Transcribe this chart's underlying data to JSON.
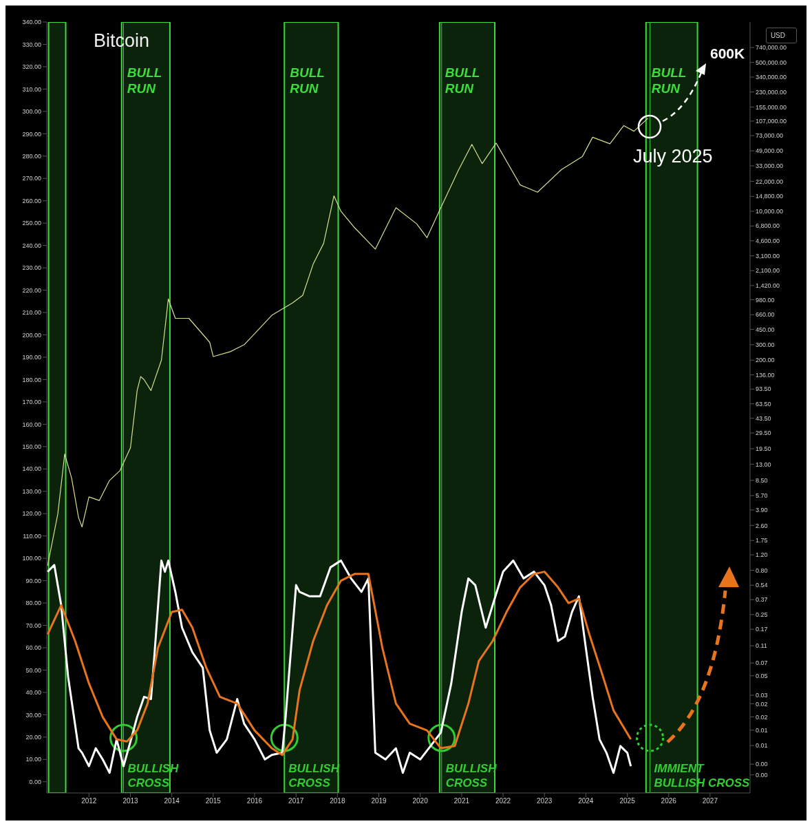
{
  "chart_data": {
    "type": "line",
    "title": "Bitcoin",
    "y2label": "USD",
    "annotations": [
      "July 2025",
      "600K"
    ],
    "xlim": [
      "2010-12-25",
      "2027-12-20"
    ],
    "xticks": [
      {
        "value": "2012-01-01",
        "label": "2012"
      },
      {
        "value": "2013-01-01",
        "label": "2013"
      },
      {
        "value": "2014-01-01",
        "label": "2014"
      },
      {
        "value": "2015-01-01",
        "label": "2015"
      },
      {
        "value": "2016-01-01",
        "label": "2016"
      },
      {
        "value": "2017-01-01",
        "label": "2017"
      },
      {
        "value": "2018-01-01",
        "label": "2018"
      },
      {
        "value": "2019-01-01",
        "label": "2019"
      },
      {
        "value": "2020-01-01",
        "label": "2020"
      },
      {
        "value": "2021-01-01",
        "label": "2021"
      },
      {
        "value": "2022-01-01",
        "label": "2022"
      },
      {
        "value": "2023-01-01",
        "label": "2023"
      },
      {
        "value": "2024-01-01",
        "label": "2024"
      },
      {
        "value": "2025-01-01",
        "label": "2025"
      },
      {
        "value": "2026-01-01",
        "label": "2026"
      },
      {
        "value": "2027-01-01",
        "label": "2027"
      }
    ],
    "ylim": [
      -5,
      340
    ],
    "yticks": [
      {
        "value": 0,
        "label": "0.00"
      },
      {
        "value": 10,
        "label": "10.00"
      },
      {
        "value": 20,
        "label": "20.00"
      },
      {
        "value": 30,
        "label": "30.00"
      },
      {
        "value": 40,
        "label": "40.00"
      },
      {
        "value": 50,
        "label": "50.00"
      },
      {
        "value": 60,
        "label": "60.00"
      },
      {
        "value": 70,
        "label": "70.00"
      },
      {
        "value": 80,
        "label": "80.00"
      },
      {
        "value": 90,
        "label": "90.00"
      },
      {
        "value": 100,
        "label": "100.00"
      },
      {
        "value": 110,
        "label": "110.00"
      },
      {
        "value": 120,
        "label": "120.00"
      },
      {
        "value": 130,
        "label": "130.00"
      },
      {
        "value": 140,
        "label": "140.00"
      },
      {
        "value": 150,
        "label": "150.00"
      },
      {
        "value": 160,
        "label": "160.00"
      },
      {
        "value": 170,
        "label": "170.00"
      },
      {
        "value": 180,
        "label": "180.00"
      },
      {
        "value": 190,
        "label": "190.00"
      },
      {
        "value": 200,
        "label": "200.00"
      },
      {
        "value": 210,
        "label": "210.00"
      },
      {
        "value": 220,
        "label": "220.00"
      },
      {
        "value": 230,
        "label": "230.00"
      },
      {
        "value": 240,
        "label": "240.00"
      },
      {
        "value": 250,
        "label": "250.00"
      },
      {
        "value": 260,
        "label": "260.00"
      },
      {
        "value": 270,
        "label": "270.00"
      },
      {
        "value": 280,
        "label": "280.00"
      },
      {
        "value": 290,
        "label": "290.00"
      },
      {
        "value": 300,
        "label": "300.00"
      },
      {
        "value": 310,
        "label": "310.00"
      },
      {
        "value": 320,
        "label": "320.00"
      },
      {
        "value": 330,
        "label": "330.00"
      },
      {
        "value": 340,
        "label": "340.00"
      }
    ],
    "y2lim": [
      0.0023,
      1445000
    ],
    "y2ticks": [
      {
        "value": 740000,
        "label": "740,000.00"
      },
      {
        "value": 500000,
        "label": "500,000.00"
      },
      {
        "value": 340000,
        "label": "340,000.00"
      },
      {
        "value": 230000,
        "label": "230,000.00"
      },
      {
        "value": 155000,
        "label": "155,000.00"
      },
      {
        "value": 107000,
        "label": "107,000.00"
      },
      {
        "value": 73000,
        "label": "73,000.00"
      },
      {
        "value": 49000,
        "label": "49,000.00"
      },
      {
        "value": 33000,
        "label": "33,000.00"
      },
      {
        "value": 22000,
        "label": "22,000.00"
      },
      {
        "value": 14800,
        "label": "14,800.00"
      },
      {
        "value": 10000,
        "label": "10,000.00"
      },
      {
        "value": 6800,
        "label": "6,800.00"
      },
      {
        "value": 4600,
        "label": "4,600.00"
      },
      {
        "value": 3100,
        "label": "3,100.00"
      },
      {
        "value": 2100,
        "label": "2,100.00"
      },
      {
        "value": 1420,
        "label": "1,420.00"
      },
      {
        "value": 980,
        "label": "980.00"
      },
      {
        "value": 660,
        "label": "660.00"
      },
      {
        "value": 450,
        "label": "450.00"
      },
      {
        "value": 300,
        "label": "300.00"
      },
      {
        "value": 200,
        "label": "200.00"
      },
      {
        "value": 136,
        "label": "136.00"
      },
      {
        "value": 93.5,
        "label": "93.50"
      },
      {
        "value": 63.5,
        "label": "63.50"
      },
      {
        "value": 43.5,
        "label": "43.50"
      },
      {
        "value": 29.5,
        "label": "29.50"
      },
      {
        "value": 19.5,
        "label": "19.50"
      },
      {
        "value": 13,
        "label": "13.00"
      },
      {
        "value": 8.5,
        "label": "8.50"
      },
      {
        "value": 5.7,
        "label": "5.70"
      },
      {
        "value": 3.9,
        "label": "3.90"
      },
      {
        "value": 2.6,
        "label": "2.60"
      },
      {
        "value": 1.75,
        "label": "1.75"
      },
      {
        "value": 1.2,
        "label": "1.20"
      },
      {
        "value": 0.8,
        "label": "0.80"
      },
      {
        "value": 0.54,
        "label": "0.54"
      },
      {
        "value": 0.37,
        "label": "0.37"
      },
      {
        "value": 0.25,
        "label": "0.25"
      },
      {
        "value": 0.17,
        "label": "0.17"
      },
      {
        "value": 0.11,
        "label": "0.11"
      },
      {
        "value": 0.07,
        "label": "0.07"
      },
      {
        "value": 0.05,
        "label": "0.05"
      },
      {
        "value": 0.03,
        "label": "0.03"
      },
      {
        "value": 0.024,
        "label": "0.02"
      },
      {
        "value": 0.017,
        "label": "0.02"
      },
      {
        "value": 0.012,
        "label": "0.01"
      },
      {
        "value": 0.008,
        "label": "0.01"
      },
      {
        "value": 0.0049,
        "label": "0.00"
      },
      {
        "value": 0.0037,
        "label": "0.00"
      }
    ],
    "series": [
      {
        "color": "#d6e08f",
        "axis": "y2",
        "x": [
          "2011-01",
          "2011-04",
          "2011-06",
          "2011-08",
          "2011-10",
          "2011-11",
          "2012-01",
          "2012-04",
          "2012-07",
          "2012-10",
          "2013-01",
          "2013-03",
          "2013-04",
          "2013-05",
          "2013-07",
          "2013-10",
          "2013-12",
          "2014-02",
          "2014-06",
          "2014-12",
          "2015-01",
          "2015-06",
          "2015-10",
          "2016-01",
          "2016-06",
          "2016-12",
          "2017-03",
          "2017-06",
          "2017-09",
          "2017-12",
          "2018-02",
          "2018-06",
          "2018-12",
          "2019-06",
          "2019-12",
          "2020-03",
          "2020-07",
          "2020-12",
          "2021-04",
          "2021-07",
          "2021-11",
          "2022-06",
          "2022-11",
          "2023-06",
          "2023-12",
          "2024-03",
          "2024-08",
          "2024-12",
          "2025-03",
          "2025-07"
        ],
        "values": [
          0.9,
          3.5,
          17,
          9,
          3.2,
          2.5,
          5.5,
          5,
          8.5,
          11,
          20,
          90,
          130,
          120,
          90,
          200,
          1000,
          600,
          600,
          320,
          220,
          250,
          300,
          400,
          650,
          900,
          1100,
          2500,
          4300,
          15000,
          10000,
          6500,
          3700,
          11000,
          7200,
          5000,
          11000,
          29000,
          58000,
          35000,
          60000,
          20000,
          16500,
          30000,
          42000,
          70000,
          59000,
          95000,
          82000,
          115000
        ]
      },
      {
        "color": "#ffffff",
        "x": [
          "2011-01",
          "2011-03",
          "2011-05",
          "2011-07",
          "2011-10",
          "2011-11",
          "2012-01",
          "2012-03",
          "2012-05",
          "2012-07",
          "2012-09",
          "2012-11",
          "2013-01",
          "2013-03",
          "2013-05",
          "2013-07",
          "2013-08",
          "2013-10",
          "2013-11",
          "2013-12",
          "2014-02",
          "2014-04",
          "2014-07",
          "2014-10",
          "2014-12",
          "2015-02",
          "2015-05",
          "2015-08",
          "2015-10",
          "2016-01",
          "2016-04",
          "2016-06",
          "2016-09",
          "2016-10",
          "2017-01",
          "2017-02",
          "2017-05",
          "2017-08",
          "2017-11",
          "2018-02",
          "2018-05",
          "2018-08",
          "2018-10",
          "2018-12",
          "2019-03",
          "2019-06",
          "2019-08",
          "2019-10",
          "2020-01",
          "2020-04",
          "2020-07",
          "2020-10",
          "2021-01",
          "2021-03",
          "2021-05",
          "2021-08",
          "2021-10",
          "2022-01",
          "2022-04",
          "2022-07",
          "2022-10",
          "2023-01",
          "2023-03",
          "2023-05",
          "2023-07",
          "2023-09",
          "2023-11",
          "2024-01",
          "2024-03",
          "2024-05",
          "2024-07",
          "2024-09",
          "2024-11",
          "2025-01",
          "2025-02"
        ],
        "values": [
          94,
          97,
          79,
          47,
          15,
          13,
          7,
          15,
          10,
          4,
          19,
          7,
          18,
          29,
          38,
          37,
          57,
          99,
          94,
          99,
          85,
          69,
          58,
          51,
          23,
          13,
          19,
          37,
          26,
          19,
          10,
          12,
          13,
          29,
          88,
          85,
          83,
          83,
          96,
          99,
          91,
          85,
          91,
          13,
          10,
          15,
          4,
          13,
          10,
          16,
          22,
          44,
          76,
          91,
          88,
          69,
          79,
          94,
          99,
          91,
          94,
          88,
          79,
          63,
          65,
          76,
          83,
          60,
          38,
          19,
          13,
          4,
          16,
          13,
          7
        ]
      },
      {
        "color": "#e8741e",
        "x": [
          "2011-01",
          "2011-05",
          "2011-09",
          "2012-01",
          "2012-05",
          "2012-09",
          "2012-12",
          "2013-03",
          "2013-06",
          "2013-09",
          "2014-01",
          "2014-04",
          "2014-07",
          "2014-11",
          "2015-03",
          "2015-08",
          "2016-01",
          "2016-06",
          "2016-09",
          "2016-12",
          "2017-02",
          "2017-06",
          "2017-10",
          "2018-02",
          "2018-06",
          "2018-10",
          "2019-02",
          "2019-06",
          "2019-10",
          "2020-03",
          "2020-07",
          "2020-11",
          "2021-03",
          "2021-06",
          "2021-10",
          "2022-02",
          "2022-06",
          "2022-10",
          "2023-01",
          "2023-05",
          "2023-08",
          "2023-11",
          "2024-02",
          "2024-06",
          "2024-09",
          "2025-02"
        ],
        "values": [
          66,
          79,
          63,
          44,
          29,
          19,
          18,
          23,
          35,
          60,
          76,
          77,
          69,
          51,
          38,
          35,
          23,
          15,
          12,
          19,
          41,
          63,
          79,
          90,
          93,
          93,
          60,
          35,
          26,
          23,
          15,
          16,
          35,
          54,
          63,
          76,
          87,
          93,
          94,
          87,
          80,
          82,
          66,
          47,
          32,
          19
        ]
      }
    ],
    "bands": [
      {
        "axis": "x",
        "from": "2011-01-10",
        "to": "2011-06-10",
        "color": "#3ddc3d"
      },
      {
        "axis": "x",
        "from": "2012-10-15",
        "to": "2013-12-15",
        "label": "BULL RUN",
        "color": "#3ddc3d"
      },
      {
        "axis": "x",
        "from": "2016-09-20",
        "to": "2018-01-08",
        "label": "BULL RUN",
        "color": "#3ddc3d"
      },
      {
        "axis": "x",
        "from": "2020-06-20",
        "to": "2021-10-20",
        "label": "BULL RUN",
        "color": "#3ddc3d"
      },
      {
        "axis": "x",
        "from": "2025-06-15",
        "to": "2026-09-12",
        "label": "BULL RUN",
        "color": "#3ddc3d"
      }
    ],
    "ref_lines": [
      {
        "axis": "x",
        "value": "2012-11-01",
        "label": "BULLISH CROSS",
        "color": "#33cc33"
      },
      {
        "axis": "x",
        "value": "2016-09-20",
        "label": "BULLISH CROSS",
        "color": "#33cc33"
      },
      {
        "axis": "x",
        "value": "2020-07-08",
        "label": "BULLISH CROSS",
        "color": "#33cc33"
      },
      {
        "axis": "x",
        "value": "2025-07-20",
        "label": "IMMIENT BULLISH CROSS",
        "color": "#33cc33"
      }
    ],
    "log": "y2",
    "marker": "none",
    "line_style": "solid"
  }
}
